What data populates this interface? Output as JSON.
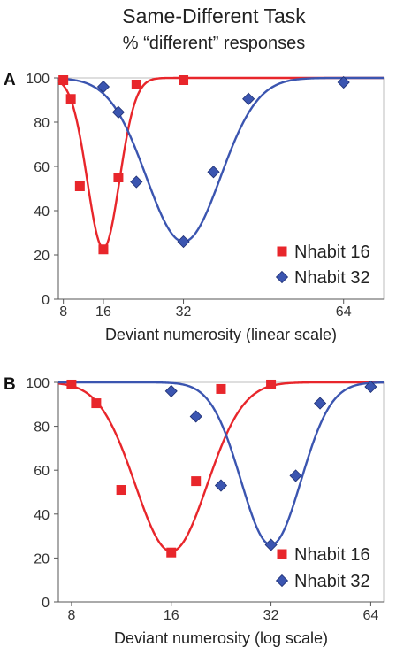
{
  "figure": {
    "title": "Same-Different Task",
    "subtitle": "% “different” responses"
  },
  "chart_data": [
    {
      "panel_label": "A",
      "type": "scatter",
      "x_scale": "linear",
      "xlabel": "Deviant numerosity (linear scale)",
      "ylabel": "",
      "xlim": [
        7,
        72
      ],
      "ylim": [
        0,
        100
      ],
      "x_ticks": [
        8,
        16,
        32,
        64
      ],
      "y_ticks": [
        0,
        20,
        40,
        60,
        80,
        100
      ],
      "grid": false,
      "legend_position": "bottom-right",
      "series": [
        {
          "name": "Nhabit 16",
          "marker": "square",
          "color": "#e8262b",
          "x": [
            8,
            9.5,
            11.3,
            16,
            19,
            22.6,
            32
          ],
          "y": [
            99,
            90.5,
            51,
            22.5,
            55,
            97,
            99
          ],
          "fit": {
            "center": 16,
            "depth": 77,
            "width": 3.2
          }
        },
        {
          "name": "Nhabit 32",
          "marker": "diamond",
          "color": "#3b55b0",
          "x": [
            16,
            19,
            22.6,
            32,
            38,
            45,
            64
          ],
          "y": [
            96,
            84.5,
            53,
            26,
            57.5,
            90.5,
            98
          ],
          "fit": {
            "center": 32,
            "depth": 74,
            "width": 7.4
          }
        }
      ]
    },
    {
      "panel_label": "B",
      "type": "scatter",
      "x_scale": "log",
      "xlabel": "Deviant numerosity (log scale)",
      "ylabel": "",
      "xlim": [
        7.3,
        70
      ],
      "ylim": [
        0,
        100
      ],
      "x_ticks": [
        8,
        16,
        32,
        64
      ],
      "y_ticks": [
        0,
        20,
        40,
        60,
        80,
        100
      ],
      "grid": false,
      "legend_position": "bottom-right",
      "series": [
        {
          "name": "Nhabit 16",
          "marker": "square",
          "color": "#e8262b",
          "x": [
            8,
            9.5,
            11.3,
            16,
            19,
            22.6,
            32
          ],
          "y": [
            99,
            90.5,
            51,
            22.5,
            55,
            97,
            99
          ],
          "fit": {
            "center": 16,
            "depth": 77,
            "width": 0.36
          }
        },
        {
          "name": "Nhabit 32",
          "marker": "diamond",
          "color": "#3b55b0",
          "x": [
            16,
            19,
            22.6,
            32,
            38,
            45,
            64
          ],
          "y": [
            96,
            84.5,
            53,
            26,
            57.5,
            90.5,
            98
          ],
          "fit": {
            "center": 32,
            "depth": 74,
            "width": 0.3
          }
        }
      ]
    }
  ]
}
